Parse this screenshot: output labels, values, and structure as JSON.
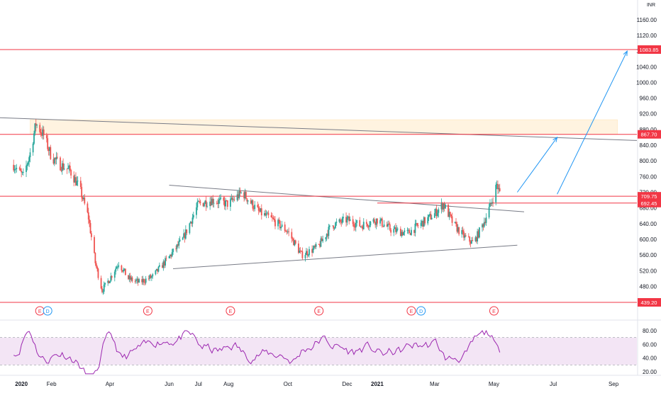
{
  "chart_data": [
    {
      "type": "candlestick",
      "title": "",
      "currency": "INR",
      "ylim": [
        420,
        1200
      ],
      "y_ticks": [
        "1160.00",
        "1120.00",
        "1080.00",
        "1040.00",
        "1000.00",
        "960.00",
        "920.00",
        "880.00",
        "840.00",
        "800.00",
        "760.00",
        "720.00",
        "680.00",
        "640.00",
        "600.00",
        "560.00",
        "520.00",
        "480.00"
      ],
      "x_ticks": [
        "2020",
        "Feb",
        "Apr",
        "Jun",
        "Jul",
        "Aug",
        "Oct",
        "Dec",
        "2021",
        "Mar",
        "May",
        "Jul",
        "Sep"
      ],
      "ohlc_path": [
        [
          "2019-12-24",
          790
        ],
        [
          "2020-01-03",
          760
        ],
        [
          "2020-01-10",
          820
        ],
        [
          "2020-01-16",
          895
        ],
        [
          "2020-01-24",
          865
        ],
        [
          "2020-02-01",
          810
        ],
        [
          "2020-02-10",
          790
        ],
        [
          "2020-02-20",
          775
        ],
        [
          "2020-03-01",
          730
        ],
        [
          "2020-03-10",
          655
        ],
        [
          "2020-03-17",
          540
        ],
        [
          "2020-03-24",
          470
        ],
        [
          "2020-04-01",
          500
        ],
        [
          "2020-04-10",
          540
        ],
        [
          "2020-04-20",
          500
        ],
        [
          "2020-05-01",
          490
        ],
        [
          "2020-05-15",
          505
        ],
        [
          "2020-06-01",
          555
        ],
        [
          "2020-06-15",
          600
        ],
        [
          "2020-07-01",
          690
        ],
        [
          "2020-07-15",
          700
        ],
        [
          "2020-08-01",
          690
        ],
        [
          "2020-08-15",
          720
        ],
        [
          "2020-09-01",
          670
        ],
        [
          "2020-09-15",
          650
        ],
        [
          "2020-10-01",
          620
        ],
        [
          "2020-10-15",
          560
        ],
        [
          "2020-11-01",
          580
        ],
        [
          "2020-11-15",
          635
        ],
        [
          "2020-12-01",
          650
        ],
        [
          "2020-12-15",
          635
        ],
        [
          "2021-01-01",
          650
        ],
        [
          "2021-01-15",
          625
        ],
        [
          "2021-02-01",
          615
        ],
        [
          "2021-02-15",
          640
        ],
        [
          "2021-03-01",
          665
        ],
        [
          "2021-03-10",
          690
        ],
        [
          "2021-03-20",
          640
        ],
        [
          "2021-04-01",
          605
        ],
        [
          "2021-04-10",
          590
        ],
        [
          "2021-04-20",
          640
        ],
        [
          "2021-04-28",
          690
        ],
        [
          "2021-05-04",
          740
        ],
        [
          "2021-05-08",
          709.75
        ]
      ],
      "horizontal_levels": [
        {
          "value": 1083.85,
          "label": "1083.85",
          "color": "#f23645"
        },
        {
          "value": 867.7,
          "label": "867.70",
          "color": "#f23645"
        },
        {
          "value": 709.75,
          "label": "709.75",
          "color": "#f23645"
        },
        {
          "value": 692.45,
          "label": "692.45",
          "color": "#f23645"
        },
        {
          "value": 439.2,
          "label": "439.20",
          "color": "#f23645"
        }
      ],
      "events": [
        {
          "date": "2020-01-20",
          "label": "E",
          "color": "#f23645"
        },
        {
          "date": "2020-01-28",
          "label": "D",
          "color": "#2196f3"
        },
        {
          "date": "2020-05-10",
          "label": "E",
          "color": "#f23645"
        },
        {
          "date": "2020-08-03",
          "label": "E",
          "color": "#f23645"
        },
        {
          "date": "2020-11-02",
          "label": "E",
          "color": "#f23645"
        },
        {
          "date": "2021-02-05",
          "label": "E",
          "color": "#f23645"
        },
        {
          "date": "2021-02-15",
          "label": "D",
          "color": "#2196f3"
        },
        {
          "date": "2021-05-01",
          "label": "E",
          "color": "#f23645"
        }
      ],
      "colors": {
        "up": "#26a69a",
        "down": "#ef5350",
        "trendline": "#787b86",
        "projection": "#2196f3",
        "zone": "#fff3e0"
      }
    },
    {
      "type": "line",
      "title": "",
      "ylim": [
        10,
        90
      ],
      "y_ticks": [
        "80.00",
        "60.00",
        "40.00",
        "20.00"
      ],
      "band": [
        30,
        70
      ],
      "colors": {
        "line": "#9c27b0",
        "band": "#f3e5f5"
      }
    }
  ]
}
